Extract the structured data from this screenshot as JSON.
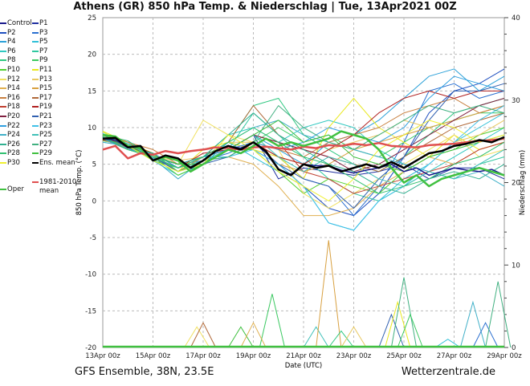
{
  "chart_data": {
    "type": "line",
    "title": "Athens  (GR)  850 hPa Temp. & Niederschlag | Tue, 13Apr2021 00Z",
    "xlabel": "Date (UTC)",
    "ylabel": "850 hPa Temp. (°C)",
    "y2label": "Niederschlag (mm)",
    "ylim": [
      -20,
      25
    ],
    "y2lim": [
      0,
      40
    ],
    "grid": true,
    "legend_placement": "left-outside",
    "x_ticks": [
      "13Apr 00z",
      "15Apr 00z",
      "17Apr 00z",
      "19Apr 00z",
      "21Apr 00z",
      "23Apr 00z",
      "25Apr 00z",
      "27Apr 00z",
      "29Apr 00z"
    ],
    "y_ticks": [
      25,
      20,
      15,
      10,
      5,
      0,
      -5,
      -10,
      -15,
      -20
    ],
    "y2_ticks": [
      0,
      10,
      20,
      30,
      40
    ],
    "x_12h": [
      "13Apr00z",
      "13Apr12z",
      "14Apr00z",
      "14Apr12z",
      "15Apr00z",
      "15Apr12z",
      "16Apr00z",
      "16Apr12z",
      "17Apr00z",
      "17Apr12z",
      "18Apr00z",
      "18Apr12z",
      "19Apr00z",
      "19Apr12z",
      "20Apr00z",
      "20Apr12z",
      "21Apr00z",
      "21Apr12z",
      "22Apr00z",
      "22Apr12z",
      "23Apr00z",
      "23Apr12z",
      "24Apr00z",
      "24Apr12z",
      "25Apr00z",
      "25Apr12z",
      "26Apr00z",
      "26Apr12z",
      "27Apr00z",
      "27Apr12z",
      "28Apr00z",
      "28Apr12z",
      "29Apr00z"
    ],
    "x_daily": [
      "13Apr00z",
      "14Apr00z",
      "15Apr00z",
      "16Apr00z",
      "17Apr00z",
      "18Apr00z",
      "19Apr00z",
      "20Apr00z",
      "21Apr00z",
      "22Apr00z",
      "23Apr00z",
      "24Apr00z",
      "25Apr00z",
      "26Apr00z",
      "27Apr00z",
      "28Apr00z",
      "29Apr00z"
    ],
    "members": [
      {
        "name": "P1",
        "color": "#2030a0",
        "values": [
          8.8,
          7,
          6,
          5,
          6,
          7,
          9,
          3,
          4.5,
          4,
          3.5,
          4,
          5,
          3,
          4.5,
          4.5,
          3
        ]
      },
      {
        "name": "P2",
        "color": "#1f4fbf",
        "values": [
          9,
          7.5,
          5.8,
          4.5,
          6,
          8,
          7,
          5,
          2,
          -1,
          -2,
          1,
          6,
          12,
          15,
          16,
          18
        ]
      },
      {
        "name": "P3",
        "color": "#2a6fd0",
        "values": [
          8.5,
          7.2,
          6,
          5,
          5.5,
          6.5,
          8,
          6,
          3,
          2,
          -2,
          2,
          8,
          15,
          16,
          14,
          15
        ]
      },
      {
        "name": "P4",
        "color": "#2aa0d8",
        "values": [
          9.5,
          7,
          6,
          4,
          6,
          7,
          9,
          7,
          5,
          8,
          9,
          11,
          14,
          17,
          18,
          15,
          17
        ]
      },
      {
        "name": "P5",
        "color": "#30c0d8",
        "values": [
          8,
          7.5,
          5.5,
          3.5,
          5,
          8,
          6,
          4,
          2,
          -3,
          -4,
          0,
          3,
          5,
          8,
          10,
          12
        ]
      },
      {
        "name": "P6",
        "color": "#30c8c0",
        "values": [
          9,
          8,
          6,
          5,
          6,
          9,
          10,
          8,
          10,
          11,
          10,
          7,
          5,
          4,
          6,
          8,
          10
        ]
      },
      {
        "name": "P7",
        "color": "#30c8a0",
        "values": [
          8.7,
          7.5,
          6,
          5,
          5,
          7,
          12,
          9,
          6,
          3,
          1,
          0,
          2,
          4,
          3,
          5,
          6
        ]
      },
      {
        "name": "P8",
        "color": "#2ec880",
        "values": [
          8.5,
          7,
          6.5,
          4,
          6,
          8,
          13,
          14,
          9,
          7,
          5,
          4,
          6,
          9,
          12,
          13,
          14
        ]
      },
      {
        "name": "P9",
        "color": "#3ac860",
        "values": [
          9,
          7.8,
          5.5,
          4.5,
          5.5,
          6,
          8,
          10,
          8,
          9,
          7,
          6,
          8,
          10,
          11,
          12,
          12
        ]
      },
      {
        "name": "P10",
        "color": "#50d030",
        "values": [
          8.2,
          7.6,
          6,
          3.5,
          5,
          7,
          7,
          4,
          1,
          3,
          2,
          1,
          4,
          6,
          7,
          9,
          10
        ]
      },
      {
        "name": "P11",
        "color": "#e8e820",
        "values": [
          9.5,
          8,
          6.5,
          4,
          7,
          8,
          7,
          6,
          3,
          10,
          14,
          10,
          8,
          6,
          9,
          7,
          8
        ]
      },
      {
        "name": "P12",
        "color": "#f0e060",
        "values": [
          9,
          7,
          6,
          5,
          11,
          9,
          8,
          7,
          1,
          -1,
          1,
          3,
          5,
          7,
          9,
          6,
          7
        ]
      },
      {
        "name": "P13",
        "color": "#e8c860",
        "values": [
          8.6,
          7.5,
          6,
          5.5,
          6,
          8,
          8,
          6,
          5,
          7,
          8,
          9,
          11,
          10,
          8,
          9,
          11
        ]
      },
      {
        "name": "P14",
        "color": "#e0b050",
        "values": [
          8.4,
          7,
          6,
          4.5,
          6,
          6,
          5,
          2,
          -2,
          -2,
          -1,
          2,
          4,
          6,
          5,
          7,
          8
        ]
      },
      {
        "name": "P15",
        "color": "#d8a040",
        "values": [
          8.8,
          7.5,
          6,
          4,
          6,
          7,
          8,
          5,
          4,
          5,
          7,
          8,
          9,
          10,
          11,
          12,
          13
        ]
      },
      {
        "name": "P16",
        "color": "#c88040",
        "values": [
          9,
          8,
          7,
          5,
          6,
          7,
          8,
          7,
          6,
          8,
          9,
          10,
          12,
          13,
          14,
          12,
          13
        ]
      },
      {
        "name": "P17",
        "color": "#b06838",
        "values": [
          8.5,
          7,
          6,
          5,
          6,
          8,
          13,
          9,
          7,
          6,
          5,
          4,
          6,
          8,
          10,
          11,
          12
        ]
      },
      {
        "name": "P18",
        "color": "#c04030",
        "values": [
          8.6,
          7.3,
          6.2,
          5,
          5,
          7,
          9,
          8,
          4,
          3,
          1,
          2,
          3,
          4,
          5,
          7,
          8
        ]
      },
      {
        "name": "P19",
        "color": "#b02020",
        "values": [
          8.3,
          7.8,
          6.5,
          4.5,
          6.5,
          7,
          8,
          6,
          5,
          7,
          9,
          12,
          14,
          15,
          14,
          15,
          15
        ]
      },
      {
        "name": "P20",
        "color": "#802040",
        "values": [
          8.7,
          7.5,
          6,
          5,
          6,
          7,
          9,
          8,
          7,
          6,
          4,
          5,
          7,
          9,
          11,
          13,
          14
        ]
      },
      {
        "name": "P21",
        "color": "#3060b0",
        "values": [
          9,
          7.4,
          6,
          4,
          5,
          6,
          8,
          5,
          3,
          2,
          -1,
          3,
          6,
          11,
          15,
          15,
          16
        ]
      },
      {
        "name": "P22",
        "color": "#30a0e0",
        "values": [
          8.5,
          7,
          6.5,
          4.5,
          6,
          7,
          8,
          7,
          8,
          10,
          9,
          8,
          10,
          14,
          17,
          16,
          15
        ]
      },
      {
        "name": "P23",
        "color": "#40c0e8",
        "values": [
          9.2,
          7.8,
          6,
          5,
          6,
          6,
          7,
          5,
          2,
          -3,
          -4,
          0,
          2,
          5,
          8,
          11,
          13
        ]
      },
      {
        "name": "P24",
        "color": "#40b0c8",
        "values": [
          8,
          7.5,
          5.8,
          3,
          5.5,
          8,
          10,
          11,
          9,
          8,
          7,
          6,
          5,
          4,
          3,
          4,
          2
        ]
      },
      {
        "name": "P25",
        "color": "#40c0b8",
        "values": [
          8.8,
          7,
          6,
          4.5,
          5.5,
          7,
          9,
          6,
          4,
          6,
          5,
          3,
          2,
          4,
          3,
          5,
          7
        ]
      },
      {
        "name": "P26",
        "color": "#30b090",
        "values": [
          9,
          8.2,
          6,
          5,
          6,
          9,
          12,
          9,
          7,
          5,
          4,
          2,
          1,
          3,
          4,
          3,
          5
        ]
      },
      {
        "name": "P27",
        "color": "#40b080",
        "values": [
          8.5,
          7.5,
          6.5,
          4,
          5.5,
          6,
          8,
          13,
          10,
          8,
          7,
          9,
          11,
          13,
          12,
          13,
          12
        ]
      },
      {
        "name": "P28",
        "color": "#30c070",
        "values": [
          8.7,
          7,
          6,
          4.5,
          6,
          8,
          10,
          8,
          6,
          5,
          3,
          1,
          2,
          3,
          5,
          6,
          8
        ]
      },
      {
        "name": "P29",
        "color": "#40c040",
        "values": [
          9.1,
          7.3,
          6.2,
          5,
          5,
          7,
          9,
          11,
          8,
          9,
          6,
          5,
          4,
          6,
          7,
          8,
          9
        ]
      },
      {
        "name": "P30",
        "color": "#f0f030",
        "values": [
          9.4,
          7.5,
          5.5,
          4,
          5,
          9,
          7,
          4,
          2,
          0,
          3,
          7,
          9,
          11,
          10,
          8,
          9
        ]
      }
    ],
    "control": {
      "name": "Control",
      "color": "#1a1a8c",
      "values": [
        8.5,
        8.3,
        7.3,
        7.4,
        5.5,
        6.2,
        5.8,
        4.6,
        5.5,
        6.8,
        7.5,
        7.2,
        8,
        6.6,
        4.3,
        3.6,
        5,
        4.8,
        4.8,
        4.2,
        3.8,
        4.2,
        4.5,
        5,
        4,
        4.5,
        3.5,
        4,
        4.5,
        4.2,
        4,
        4.3,
        3.5
      ]
    },
    "oper": {
      "name": "Oper",
      "color": "#40c040",
      "values": [
        9,
        8.8,
        7.5,
        7.2,
        5.5,
        6,
        5.5,
        4,
        5,
        6,
        7,
        6.5,
        7.5,
        8.5,
        7.5,
        8,
        7.5,
        8,
        8.5,
        9.5,
        9,
        8.5,
        7,
        4.5,
        2.5,
        3.5,
        2,
        3,
        3.5,
        4,
        4.5,
        4,
        3.5
      ]
    },
    "ens_mean": {
      "name": "Ens. mean",
      "color": "#000000",
      "values": [
        8.5,
        8.6,
        7.3,
        7.5,
        5.5,
        6.2,
        5.8,
        4.5,
        5.5,
        6.8,
        7.5,
        7,
        8,
        6.8,
        4.3,
        3.5,
        5,
        4.5,
        4.8,
        4,
        4.5,
        5,
        4.5,
        5.3,
        4.5,
        5.5,
        6.5,
        6.8,
        7.5,
        7.8,
        8.3,
        8,
        8.7
      ]
    },
    "climate_mean": {
      "name": "1981-2010 mean",
      "color": "#e05050",
      "values": [
        7,
        7.5,
        5.8,
        6.5,
        6.3,
        6.8,
        6.5,
        6.8,
        7,
        7.3,
        7.2,
        7,
        7.3,
        7.4,
        7.2,
        7,
        7.4,
        7.2,
        7.6,
        7.5,
        7.8,
        7.6,
        7.9,
        7.5,
        7.4,
        7.3,
        7.6,
        7.7,
        7.8,
        8,
        8.2,
        8.3,
        8.5
      ]
    },
    "precipitation_mm": [
      {
        "series": "P12",
        "time": "16Apr18z",
        "mm": 2.5
      },
      {
        "series": "P17",
        "time": "17Apr00z",
        "mm": 3
      },
      {
        "series": "P29",
        "time": "18Apr12z",
        "mm": 2.5
      },
      {
        "series": "P9",
        "time": "19Apr18z",
        "mm": 6.5
      },
      {
        "series": "P14",
        "time": "19Apr00z",
        "mm": 3
      },
      {
        "series": "P25",
        "time": "21Apr12z",
        "mm": 2.5
      },
      {
        "series": "P15",
        "time": "22Apr00z",
        "mm": 13
      },
      {
        "series": "P8",
        "time": "22Apr12z",
        "mm": 2
      },
      {
        "series": "P13",
        "time": "23Apr00z",
        "mm": 2.5
      },
      {
        "series": "P21",
        "time": "24Apr12z",
        "mm": 4
      },
      {
        "series": "P11",
        "time": "24Apr18z",
        "mm": 5.5
      },
      {
        "series": "P27",
        "time": "25Apr00z",
        "mm": 8.5
      },
      {
        "series": "P9",
        "time": "25Apr06z",
        "mm": 4
      },
      {
        "series": "P5",
        "time": "26Apr18z",
        "mm": 1
      },
      {
        "series": "P24",
        "time": "27Apr18z",
        "mm": 5.5
      },
      {
        "series": "P3",
        "time": "28Apr06z",
        "mm": 3
      },
      {
        "series": "P27",
        "time": "28Apr18z",
        "mm": 8
      }
    ]
  },
  "legend": [
    [
      "Control",
      "#1a1a8c"
    ],
    [
      "P1",
      "#2030a0"
    ],
    [
      "P2",
      "#1f4fbf"
    ],
    [
      "P3",
      "#2a6fd0"
    ],
    [
      "P4",
      "#2aa0d8"
    ],
    [
      "P5",
      "#30c0d8"
    ],
    [
      "P6",
      "#30c8c0"
    ],
    [
      "P7",
      "#30c8a0"
    ],
    [
      "P8",
      "#2ec880"
    ],
    [
      "P9",
      "#3ac860"
    ],
    [
      "P10",
      "#50d030"
    ],
    [
      "P11",
      "#e8e820"
    ],
    [
      "P12",
      "#f0e060"
    ],
    [
      "P13",
      "#e8c860"
    ],
    [
      "P14",
      "#e0b050"
    ],
    [
      "P15",
      "#d8a040"
    ],
    [
      "P16",
      "#c88040"
    ],
    [
      "P17",
      "#b06838"
    ],
    [
      "P18",
      "#c04030"
    ],
    [
      "P19",
      "#b02020"
    ],
    [
      "P20",
      "#802040"
    ],
    [
      "P21",
      "#3060b0"
    ],
    [
      "P22",
      "#30a0e0"
    ],
    [
      "P23",
      "#40c0e8"
    ],
    [
      "P24",
      "#40b0c8"
    ],
    [
      "P25",
      "#40c0b8"
    ],
    [
      "P26",
      "#30b090"
    ],
    [
      "P27",
      "#40b080"
    ],
    [
      "P28",
      "#30c070"
    ],
    [
      "P29",
      "#40c040"
    ],
    [
      "P30",
      "#f0f030"
    ],
    [
      "Ens. mean",
      "#000000"
    ]
  ],
  "legend_extra": {
    "climate_line1": "1981-2010",
    "climate_line2": "mean",
    "climate_color": "#e05050",
    "oper": "Oper",
    "oper_color": "#40c040"
  },
  "footer": {
    "left": "GFS Ensemble, 38N, 23.5E",
    "right": "Wetterzentrale.de"
  }
}
